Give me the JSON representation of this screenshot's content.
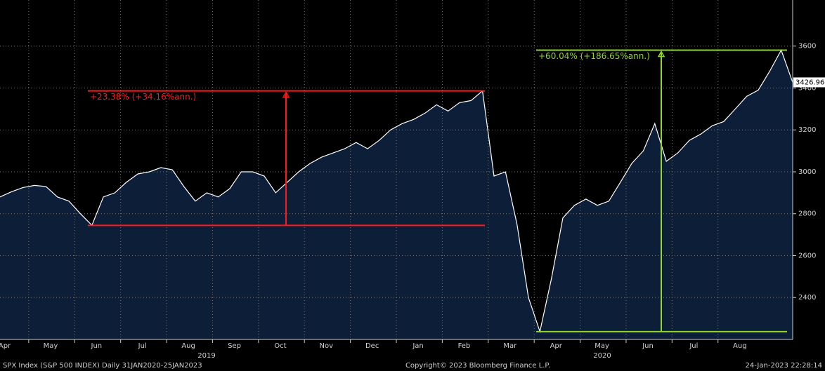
{
  "chart_data": {
    "type": "area",
    "categories": [
      "Apr",
      null,
      null,
      null,
      "May",
      null,
      null,
      null,
      "Jun",
      null,
      null,
      null,
      "Jul",
      null,
      null,
      null,
      "Aug",
      null,
      null,
      null,
      "Sep",
      null,
      null,
      null,
      "Oct",
      null,
      null,
      null,
      "Nov",
      null,
      null,
      null,
      "Dec",
      null,
      null,
      null,
      "Jan",
      null,
      null,
      null,
      "Feb",
      null,
      null,
      null,
      "Mar",
      null,
      null,
      null,
      "Apr",
      null,
      null,
      null,
      "May",
      null,
      null,
      null,
      "Jun",
      null,
      null,
      null,
      "Jul",
      null,
      null,
      null,
      "Aug",
      null,
      null,
      null,
      null,
      null
    ],
    "year_labels": [
      "2019",
      "2020"
    ],
    "series": [
      {
        "name": "SPX Index",
        "color": "#ffffff",
        "fill": "#0c1e38",
        "values": [
          2880,
          2905,
          2925,
          2935,
          2930,
          2880,
          2860,
          2800,
          2745,
          2880,
          2900,
          2950,
          2990,
          3000,
          3020,
          3010,
          2930,
          2860,
          2900,
          2880,
          2920,
          3000,
          3000,
          2980,
          2900,
          2950,
          3000,
          3040,
          3070,
          3090,
          3110,
          3140,
          3110,
          3150,
          3200,
          3230,
          3250,
          3280,
          3320,
          3290,
          3330,
          3340,
          3386.15,
          2980,
          3000,
          2750,
          2400,
          2237.4,
          2490,
          2780,
          2840,
          2870,
          2840,
          2860,
          2950,
          3040,
          3100,
          3230,
          3050,
          3090,
          3150,
          3180,
          3220,
          3240,
          3300,
          3360,
          3390,
          3480,
          3580.84,
          3426.96
        ]
      }
    ],
    "annotations": [
      {
        "text": "+23.38% (+34.16%ann.)",
        "color": "#ff1a1a",
        "low": 2744.45,
        "high": 3386.15
      },
      {
        "text": "+60.04% (+186.65%ann.)",
        "color": "#8ed62a",
        "low": 2237.4,
        "high": 3580.84
      }
    ],
    "ylim": [
      2200,
      3820
    ],
    "yticks": [
      2400,
      2600,
      2800,
      3000,
      3200,
      3400,
      3600
    ],
    "grid": true,
    "footer": {
      "left": "SPX Index (S&P 500 INDEX)  Daily 31JAN2020-25JAN2023",
      "center": "Copyright© 2023 Bloomberg Finance L.P.",
      "right": "24-Jan-2023 22:28:14"
    }
  }
}
